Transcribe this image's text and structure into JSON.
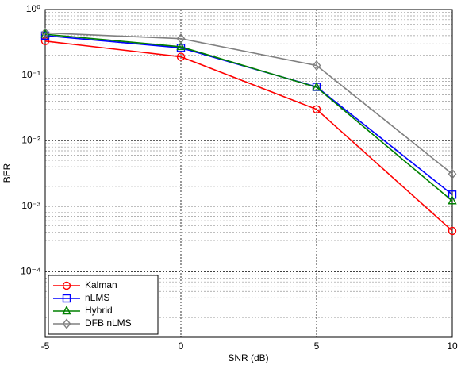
{
  "chart_data": {
    "type": "line",
    "xlabel": "SNR (dB)",
    "ylabel": "BER",
    "x": [
      -5,
      0,
      5,
      10
    ],
    "series": [
      {
        "name": "Kalman",
        "color": "#ff0000",
        "marker": "circle",
        "values": [
          0.33,
          0.19,
          0.03,
          0.00042
        ]
      },
      {
        "name": "nLMS",
        "color": "#0000ff",
        "marker": "square",
        "values": [
          0.4,
          0.26,
          0.066,
          0.0015
        ]
      },
      {
        "name": "Hybrid",
        "color": "#008000",
        "marker": "triangle",
        "values": [
          0.42,
          0.27,
          0.065,
          0.0012
        ]
      },
      {
        "name": "DFB nLMS",
        "color": "#808080",
        "marker": "diamond",
        "values": [
          0.44,
          0.36,
          0.14,
          0.0031
        ]
      }
    ],
    "xlim": [
      -5,
      10
    ],
    "xticks": [
      -5,
      0,
      5,
      10
    ],
    "ylim": [
      1e-05,
      1
    ],
    "log_y": true,
    "yticks": [
      {
        "value": 1,
        "label": "10⁰"
      },
      {
        "value": 0.1,
        "label": "10⁻¹"
      },
      {
        "value": 0.01,
        "label": "10⁻²"
      },
      {
        "value": 0.001,
        "label": "10⁻³"
      },
      {
        "value": 0.0001,
        "label": "10⁻⁴"
      }
    ],
    "grid": true,
    "minor_grid": true,
    "legend": "lower left"
  }
}
